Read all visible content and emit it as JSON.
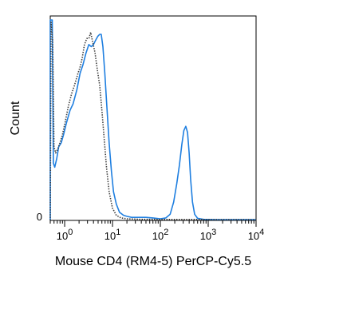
{
  "chart_data": {
    "type": "line",
    "title": "",
    "xlabel": "Mouse CD4 (RM4-5) PerCP-Cy5.5",
    "ylabel": "Count",
    "x_scale": "log",
    "xlim": [
      0.5,
      10000
    ],
    "ylim": [
      0,
      100
    ],
    "grid": false,
    "legend": "none",
    "x_ticks": [
      {
        "base": "10",
        "exp": "0",
        "value": 1
      },
      {
        "base": "10",
        "exp": "1",
        "value": 10
      },
      {
        "base": "10",
        "exp": "2",
        "value": 100
      },
      {
        "base": "10",
        "exp": "3",
        "value": 1000
      },
      {
        "base": "10",
        "exp": "4",
        "value": 10000
      }
    ],
    "y_ticks": [
      {
        "label": "0",
        "value": 0
      }
    ],
    "series": [
      {
        "style": "solid",
        "color": "#1f7fe0",
        "points": [
          [
            0.5,
            0
          ],
          [
            0.5,
            98
          ],
          [
            0.55,
            98
          ],
          [
            0.58,
            28
          ],
          [
            0.62,
            26
          ],
          [
            0.68,
            30
          ],
          [
            0.75,
            36
          ],
          [
            0.85,
            38
          ],
          [
            0.95,
            42
          ],
          [
            1.1,
            48
          ],
          [
            1.3,
            54
          ],
          [
            1.5,
            57
          ],
          [
            1.8,
            64
          ],
          [
            2.1,
            72
          ],
          [
            2.4,
            76
          ],
          [
            2.8,
            82
          ],
          [
            3.2,
            86
          ],
          [
            3.6,
            85
          ],
          [
            4.0,
            86
          ],
          [
            4.4,
            88
          ],
          [
            4.9,
            90
          ],
          [
            5.4,
            91
          ],
          [
            5.8,
            91
          ],
          [
            6.3,
            85
          ],
          [
            6.9,
            72
          ],
          [
            7.6,
            56
          ],
          [
            8.5,
            38
          ],
          [
            9.5,
            24
          ],
          [
            10.5,
            14
          ],
          [
            12,
            8
          ],
          [
            14,
            4
          ],
          [
            17,
            2.5
          ],
          [
            20,
            2
          ],
          [
            25,
            1.5
          ],
          [
            35,
            1.5
          ],
          [
            50,
            1.5
          ],
          [
            70,
            1.2
          ],
          [
            100,
            0.8
          ],
          [
            130,
            1.2
          ],
          [
            160,
            3
          ],
          [
            190,
            9
          ],
          [
            220,
            18
          ],
          [
            250,
            27
          ],
          [
            280,
            37
          ],
          [
            310,
            44
          ],
          [
            340,
            46
          ],
          [
            370,
            43
          ],
          [
            400,
            33
          ],
          [
            430,
            20
          ],
          [
            470,
            9
          ],
          [
            520,
            3
          ],
          [
            600,
            1
          ],
          [
            800,
            0.5
          ],
          [
            1500,
            0.4
          ],
          [
            10000,
            0.4
          ]
        ]
      },
      {
        "style": "dotted",
        "color": "#404040",
        "points": [
          [
            0.5,
            0
          ],
          [
            0.52,
            97
          ],
          [
            0.56,
            88
          ],
          [
            0.6,
            36
          ],
          [
            0.65,
            33
          ],
          [
            0.72,
            35
          ],
          [
            0.8,
            38
          ],
          [
            0.9,
            42
          ],
          [
            1.0,
            47
          ],
          [
            1.2,
            56
          ],
          [
            1.4,
            62
          ],
          [
            1.6,
            66
          ],
          [
            1.9,
            72
          ],
          [
            2.1,
            75
          ],
          [
            2.3,
            79
          ],
          [
            2.6,
            86
          ],
          [
            2.9,
            89
          ],
          [
            3.2,
            89
          ],
          [
            3.5,
            92
          ],
          [
            3.8,
            88
          ],
          [
            4.3,
            82
          ],
          [
            4.8,
            74
          ],
          [
            5.4,
            66
          ],
          [
            6.0,
            54
          ],
          [
            6.7,
            40
          ],
          [
            7.5,
            26
          ],
          [
            8.5,
            14
          ],
          [
            10,
            6
          ],
          [
            12,
            2.5
          ],
          [
            15,
            1.2
          ],
          [
            20,
            0.8
          ],
          [
            40,
            0.5
          ],
          [
            10000,
            0.4
          ]
        ]
      }
    ]
  }
}
